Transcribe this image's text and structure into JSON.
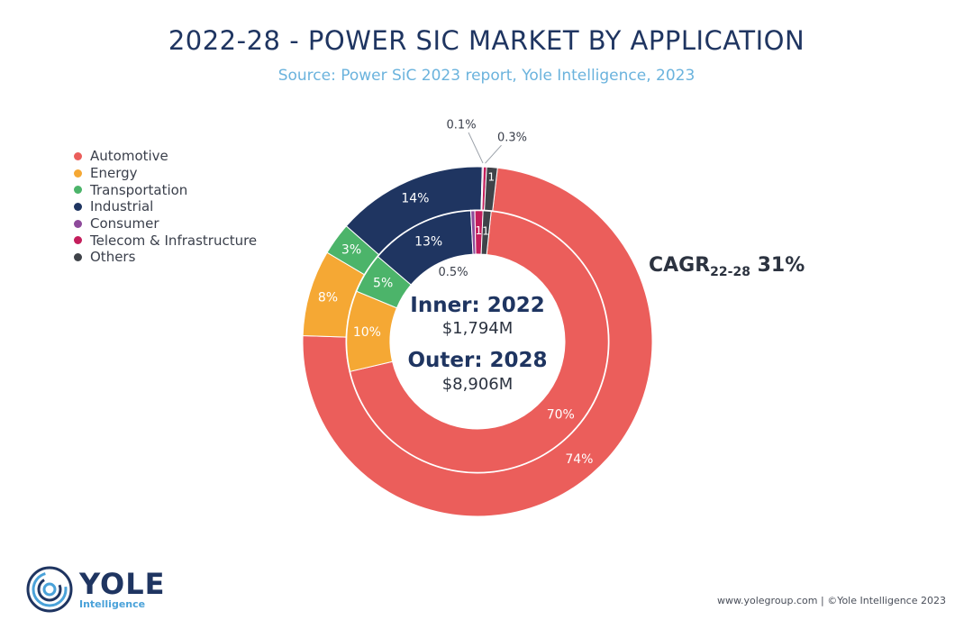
{
  "header": {
    "title": "2022-28 - POWER SIC MARKET BY APPLICATION",
    "subtitle": "Source: Power SiC 2023 report, Yole Intelligence, 2023"
  },
  "chart_data": {
    "type": "donut",
    "title": "2022-28 - POWER SIC MARKET BY APPLICATION",
    "categories": [
      "Automotive",
      "Energy",
      "Transportation",
      "Industrial",
      "Consumer",
      "Telecom & Infrastructure",
      "Others"
    ],
    "colors": [
      "#eb5e5b",
      "#f5a834",
      "#4cb46a",
      "#1f3561",
      "#8e4a9b",
      "#c41e5c",
      "#3f4349"
    ],
    "legend_position": "left",
    "series": [
      {
        "name": "Outer: 2028",
        "ring": "outer",
        "total_label": "$8,906M",
        "values": [
          74,
          8,
          3,
          14,
          0.1,
          0.3,
          1
        ],
        "labels": [
          "74%",
          "8%",
          "3%",
          "14%",
          "0.1%",
          "0.3%",
          "1"
        ]
      },
      {
        "name": "Inner: 2022",
        "ring": "inner",
        "total_label": "$1,794M",
        "values": [
          70,
          10,
          5,
          13,
          0.5,
          1,
          1
        ],
        "labels": [
          "70%",
          "10%",
          "5%",
          "13%",
          "0.5%",
          "1",
          "1"
        ]
      }
    ],
    "center": {
      "inner_label": "Inner: 2022",
      "inner_value": "$1,794M",
      "outer_label": "Outer: 2028",
      "outer_value": "$8,906M"
    },
    "annotation": {
      "text": "CAGR",
      "sub": "22-28",
      "value": "31%"
    }
  },
  "logo": {
    "name": "YOLE",
    "sub": "Intelligence"
  },
  "footer": {
    "text": "www.yolegroup.com | ©Yole Intelligence 2023"
  }
}
